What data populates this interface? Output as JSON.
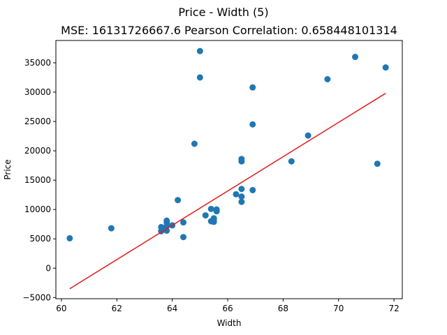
{
  "chart_data": {
    "type": "scatter",
    "title": "Price - Width (5)",
    "subtitle": "MSE: 16131726667.6 Pearson Correlation: 0.658448101314",
    "xlabel": "Width",
    "ylabel": "Price",
    "xlim": [
      59.8,
      72.3
    ],
    "ylim": [
      -5200,
      38800
    ],
    "xticks": [
      60,
      62,
      64,
      66,
      68,
      70,
      72
    ],
    "yticks": [
      -5000,
      0,
      5000,
      10000,
      15000,
      20000,
      25000,
      30000,
      35000
    ],
    "grid": false,
    "point_color": "#1f77b4",
    "line_color": "#e31a1c",
    "points": [
      {
        "x": 60.3,
        "y": 5100
      },
      {
        "x": 61.8,
        "y": 6800
      },
      {
        "x": 63.6,
        "y": 7000
      },
      {
        "x": 63.6,
        "y": 6300
      },
      {
        "x": 63.7,
        "y": 6800
      },
      {
        "x": 63.8,
        "y": 6400
      },
      {
        "x": 63.8,
        "y": 7200
      },
      {
        "x": 63.8,
        "y": 7800
      },
      {
        "x": 63.8,
        "y": 8100
      },
      {
        "x": 64.0,
        "y": 7300
      },
      {
        "x": 64.2,
        "y": 11600
      },
      {
        "x": 64.4,
        "y": 5300
      },
      {
        "x": 64.4,
        "y": 7800
      },
      {
        "x": 64.8,
        "y": 21200
      },
      {
        "x": 65.0,
        "y": 37000
      },
      {
        "x": 65.0,
        "y": 32500
      },
      {
        "x": 65.2,
        "y": 9000
      },
      {
        "x": 65.4,
        "y": 10100
      },
      {
        "x": 65.4,
        "y": 8000
      },
      {
        "x": 65.5,
        "y": 7900
      },
      {
        "x": 65.5,
        "y": 8300
      },
      {
        "x": 65.5,
        "y": 8500
      },
      {
        "x": 65.6,
        "y": 9700
      },
      {
        "x": 65.6,
        "y": 10000
      },
      {
        "x": 66.3,
        "y": 12600
      },
      {
        "x": 66.5,
        "y": 18600
      },
      {
        "x": 66.5,
        "y": 18200
      },
      {
        "x": 66.5,
        "y": 13500
      },
      {
        "x": 66.5,
        "y": 12200
      },
      {
        "x": 66.5,
        "y": 11300
      },
      {
        "x": 66.9,
        "y": 30800
      },
      {
        "x": 66.9,
        "y": 24500
      },
      {
        "x": 66.9,
        "y": 13300
      },
      {
        "x": 68.3,
        "y": 18200
      },
      {
        "x": 68.9,
        "y": 22600
      },
      {
        "x": 69.6,
        "y": 32200
      },
      {
        "x": 70.6,
        "y": 36000
      },
      {
        "x": 71.4,
        "y": 17800
      },
      {
        "x": 71.7,
        "y": 34200
      }
    ],
    "fit_line": {
      "x": [
        60.3,
        71.7
      ],
      "y": [
        -3500,
        29800
      ]
    }
  }
}
